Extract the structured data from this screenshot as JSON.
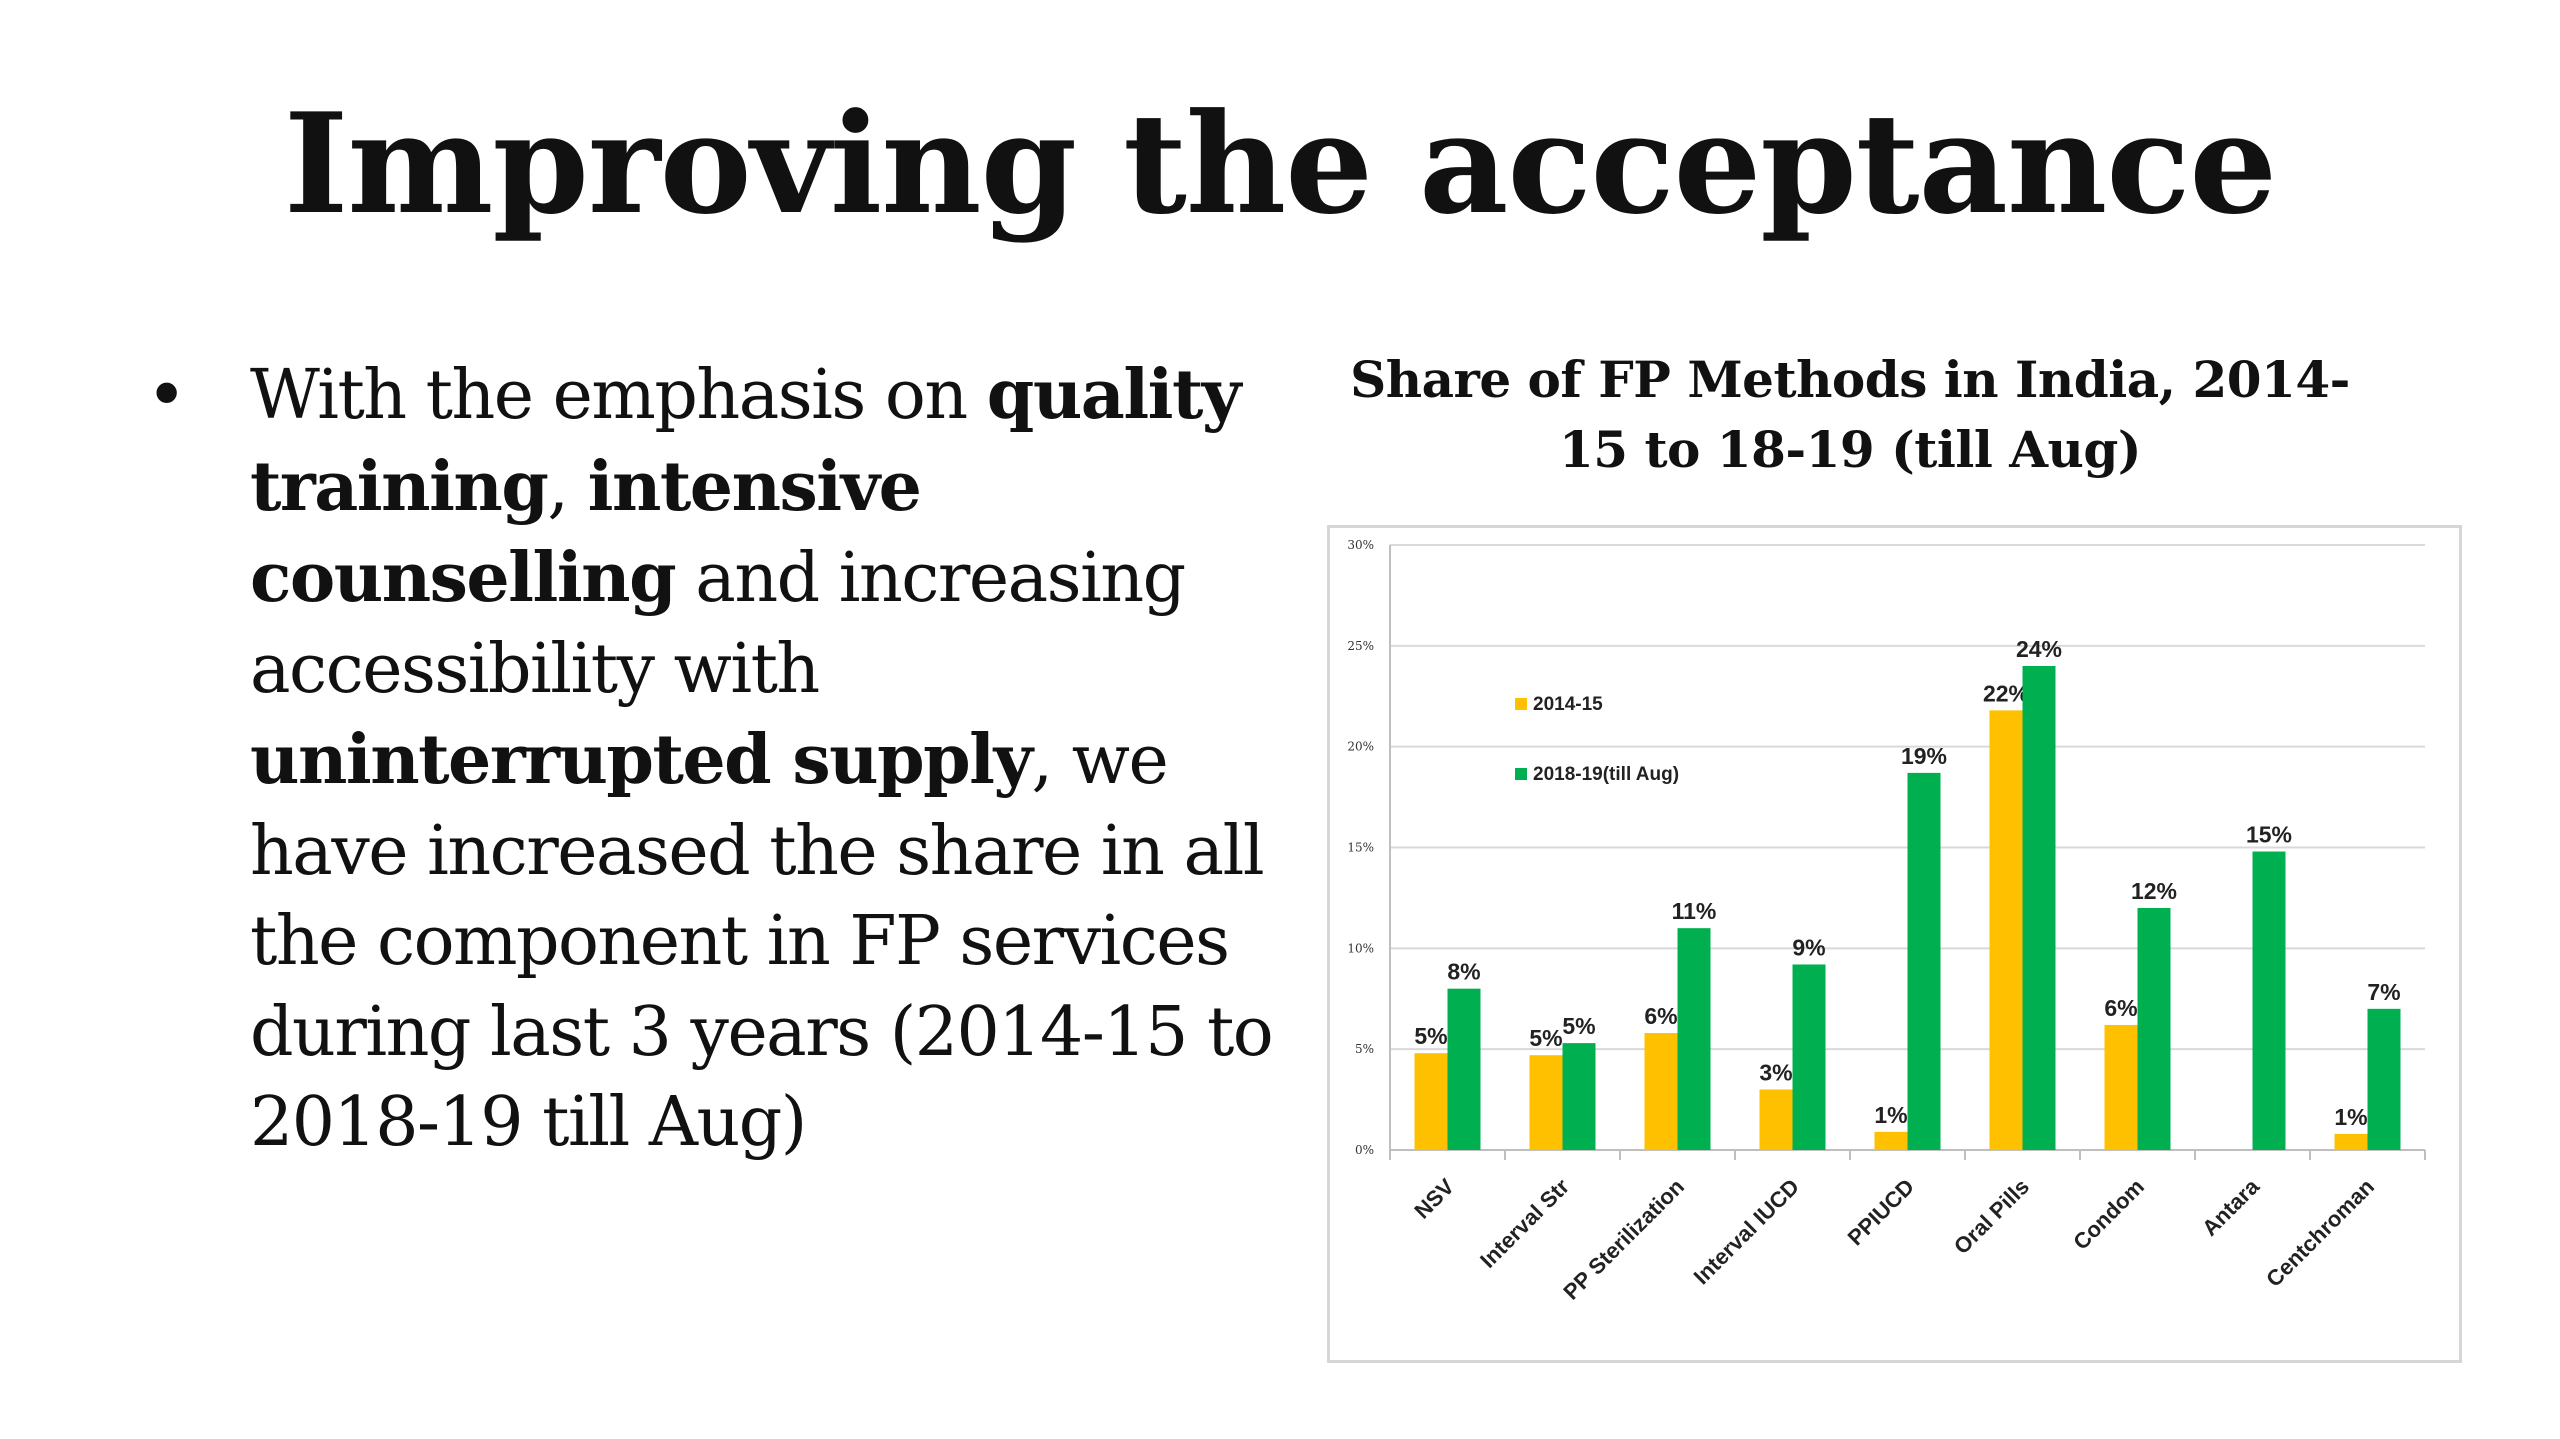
{
  "slide": {
    "title": "Improving the acceptance",
    "bullet": {
      "marker": "•",
      "t1": "With the emphasis on ",
      "b1": "quality training",
      "t2": ", ",
      "b2": "intensive counselling",
      "t3": " and increasing accessibility with ",
      "b3": "uninterrupted supply",
      "t4": ", we have increased the share in all the component in FP services  during last 3 years (2014-15 to 2018-19 till Aug)"
    }
  },
  "chart_data": {
    "type": "bar",
    "title_line1": "Share of FP Methods in India, 2014-",
    "title_line2": "15 to 18-19 (till Aug)",
    "categories": [
      "NSV",
      "Interval Str",
      "PP Sterilization",
      "Interval IUCD",
      "PPIUCD",
      "Oral Pills",
      "Condom",
      "Antara",
      "Centchroman"
    ],
    "series": [
      {
        "name": "2014-15",
        "color": "#ffc000",
        "values": [
          4.8,
          4.7,
          5.8,
          3.0,
          0.9,
          21.8,
          6.2,
          0,
          0.8
        ],
        "labels": [
          "5%",
          "5%",
          "6%",
          "3%",
          "1%",
          "22%",
          "6%",
          "",
          "1%"
        ]
      },
      {
        "name": "2018-19(till Aug)",
        "color": "#00b050",
        "values": [
          8.0,
          5.3,
          11.0,
          9.2,
          18.7,
          24.0,
          12.0,
          14.8,
          7.0
        ],
        "labels": [
          "8%",
          "5%",
          "11%",
          "9%",
          "19%",
          "24%",
          "12%",
          "15%",
          "7%"
        ]
      }
    ],
    "yticks": [
      "0%",
      "5%",
      "10%",
      "15%",
      "20%",
      "25%",
      "30%"
    ],
    "ylim": [
      0,
      30
    ],
    "grid": true,
    "legend_position": "top-left"
  }
}
